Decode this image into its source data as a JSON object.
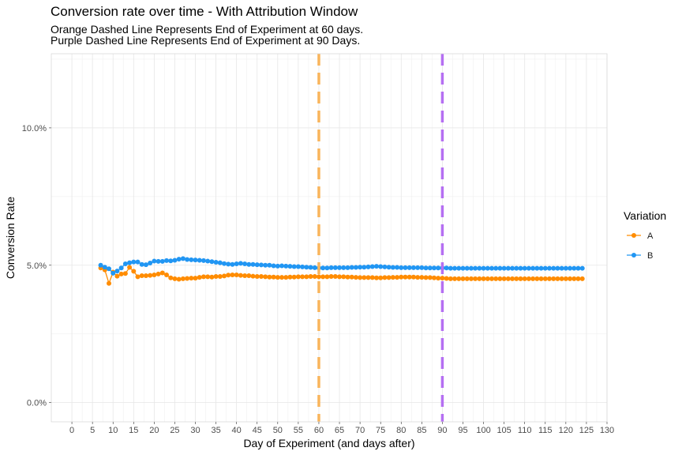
{
  "chart_data": {
    "type": "line",
    "title": "Conversion rate over time - With Attribution Window",
    "subtitle_lines": [
      "Orange Dashed Line Represents End of Experiment at 60 days.",
      "Purple Dashed Line Represents End of Experiment at 90 Days."
    ],
    "xlabel": "Day of Experiment (and days after)",
    "ylabel": "Conversion Rate",
    "xlim": [
      -5,
      130
    ],
    "ylim": [
      -0.007,
      0.127
    ],
    "x_ticks": [
      0,
      5,
      10,
      15,
      20,
      25,
      30,
      35,
      40,
      45,
      50,
      55,
      60,
      65,
      70,
      75,
      80,
      85,
      90,
      95,
      100,
      105,
      110,
      115,
      120,
      125,
      130
    ],
    "y_ticks": [
      0,
      0.05,
      0.1
    ],
    "y_tick_labels": [
      "0.0%",
      "5.0%",
      "10.0%"
    ],
    "grid": true,
    "legend": {
      "title": "Variation",
      "placement": "right"
    },
    "x": [
      7,
      8,
      9,
      10,
      11,
      12,
      13,
      14,
      15,
      16,
      17,
      18,
      19,
      20,
      21,
      22,
      23,
      24,
      25,
      26,
      27,
      28,
      29,
      30,
      31,
      32,
      33,
      34,
      35,
      36,
      37,
      38,
      39,
      40,
      41,
      42,
      43,
      44,
      45,
      46,
      47,
      48,
      49,
      50,
      51,
      52,
      53,
      54,
      55,
      56,
      57,
      58,
      59,
      60,
      61,
      62,
      63,
      64,
      65,
      66,
      67,
      68,
      69,
      70,
      71,
      72,
      73,
      74,
      75,
      76,
      77,
      78,
      79,
      80,
      81,
      82,
      83,
      84,
      85,
      86,
      87,
      88,
      89,
      90,
      91,
      92,
      93,
      94,
      95,
      96,
      97,
      98,
      99,
      100,
      101,
      102,
      103,
      104,
      105,
      106,
      107,
      108,
      109,
      110,
      111,
      112,
      113,
      114,
      115,
      116,
      117,
      118,
      119,
      120,
      121,
      122,
      123,
      124
    ],
    "series": [
      {
        "name": "A",
        "color": "#ff8c00",
        "values": [
          0.049,
          0.0483,
          0.0434,
          0.0475,
          0.046,
          0.0468,
          0.047,
          0.0492,
          0.0478,
          0.0458,
          0.0462,
          0.0462,
          0.0463,
          0.0465,
          0.0468,
          0.0472,
          0.0465,
          0.0454,
          0.0451,
          0.0449,
          0.0451,
          0.0452,
          0.0453,
          0.0453,
          0.0456,
          0.0458,
          0.0458,
          0.0457,
          0.0459,
          0.0459,
          0.0461,
          0.0464,
          0.0465,
          0.0465,
          0.0463,
          0.0462,
          0.0462,
          0.046,
          0.0459,
          0.0459,
          0.0458,
          0.0457,
          0.0457,
          0.0456,
          0.0456,
          0.0456,
          0.0457,
          0.0457,
          0.0458,
          0.0458,
          0.0458,
          0.0459,
          0.0459,
          0.0458,
          0.0458,
          0.0458,
          0.0459,
          0.0459,
          0.0458,
          0.0458,
          0.0457,
          0.0457,
          0.0456,
          0.0455,
          0.0455,
          0.0455,
          0.0455,
          0.0454,
          0.0454,
          0.0455,
          0.0455,
          0.0456,
          0.0456,
          0.0457,
          0.0457,
          0.0457,
          0.0457,
          0.0456,
          0.0456,
          0.0455,
          0.0455,
          0.0454,
          0.0453,
          0.0453,
          0.0452,
          0.0451,
          0.0451,
          0.0451,
          0.0451,
          0.0451,
          0.0451,
          0.0451,
          0.0451,
          0.0451,
          0.0451,
          0.0451,
          0.0451,
          0.0451,
          0.0451,
          0.0451,
          0.0451,
          0.0451,
          0.0451,
          0.0451,
          0.0451,
          0.0451,
          0.0451,
          0.0451,
          0.0451,
          0.0451,
          0.0451,
          0.0451,
          0.0451,
          0.0451,
          0.0451,
          0.0451,
          0.0451,
          0.0451
        ]
      },
      {
        "name": "B",
        "color": "#2196f3",
        "values": [
          0.05,
          0.0493,
          0.0487,
          0.0471,
          0.0479,
          0.049,
          0.0505,
          0.0509,
          0.0512,
          0.0512,
          0.0503,
          0.0502,
          0.0508,
          0.0515,
          0.0514,
          0.0514,
          0.0517,
          0.0516,
          0.0518,
          0.0522,
          0.0524,
          0.0521,
          0.052,
          0.0519,
          0.0518,
          0.0517,
          0.0515,
          0.0513,
          0.0511,
          0.0509,
          0.0506,
          0.0504,
          0.0503,
          0.0505,
          0.0507,
          0.0505,
          0.0503,
          0.0503,
          0.0502,
          0.0501,
          0.05,
          0.05,
          0.0498,
          0.0497,
          0.0498,
          0.0497,
          0.0496,
          0.0495,
          0.0495,
          0.0494,
          0.0493,
          0.0492,
          0.0491,
          0.049,
          0.049,
          0.049,
          0.0491,
          0.0491,
          0.0491,
          0.0491,
          0.0491,
          0.0492,
          0.0492,
          0.0493,
          0.0493,
          0.0494,
          0.0495,
          0.0496,
          0.0495,
          0.0494,
          0.0493,
          0.0492,
          0.0492,
          0.0491,
          0.0491,
          0.0491,
          0.0491,
          0.0491,
          0.0491,
          0.049,
          0.049,
          0.049,
          0.049,
          0.049,
          0.049,
          0.0489,
          0.0489,
          0.0489,
          0.0489,
          0.0489,
          0.0489,
          0.0489,
          0.0489,
          0.0489,
          0.0489,
          0.0489,
          0.0489,
          0.0489,
          0.0489,
          0.0489,
          0.0489,
          0.0489,
          0.0489,
          0.0489,
          0.0489,
          0.0489,
          0.0489,
          0.0489,
          0.0489,
          0.0489,
          0.0489,
          0.0489,
          0.0489,
          0.0489,
          0.0489,
          0.0489,
          0.0489,
          0.0489
        ]
      }
    ],
    "reference_lines": [
      {
        "x": 60,
        "color": "#f9b55c",
        "style": "dashed"
      },
      {
        "x": 90,
        "color": "#b56ff2",
        "style": "dashed"
      }
    ]
  }
}
